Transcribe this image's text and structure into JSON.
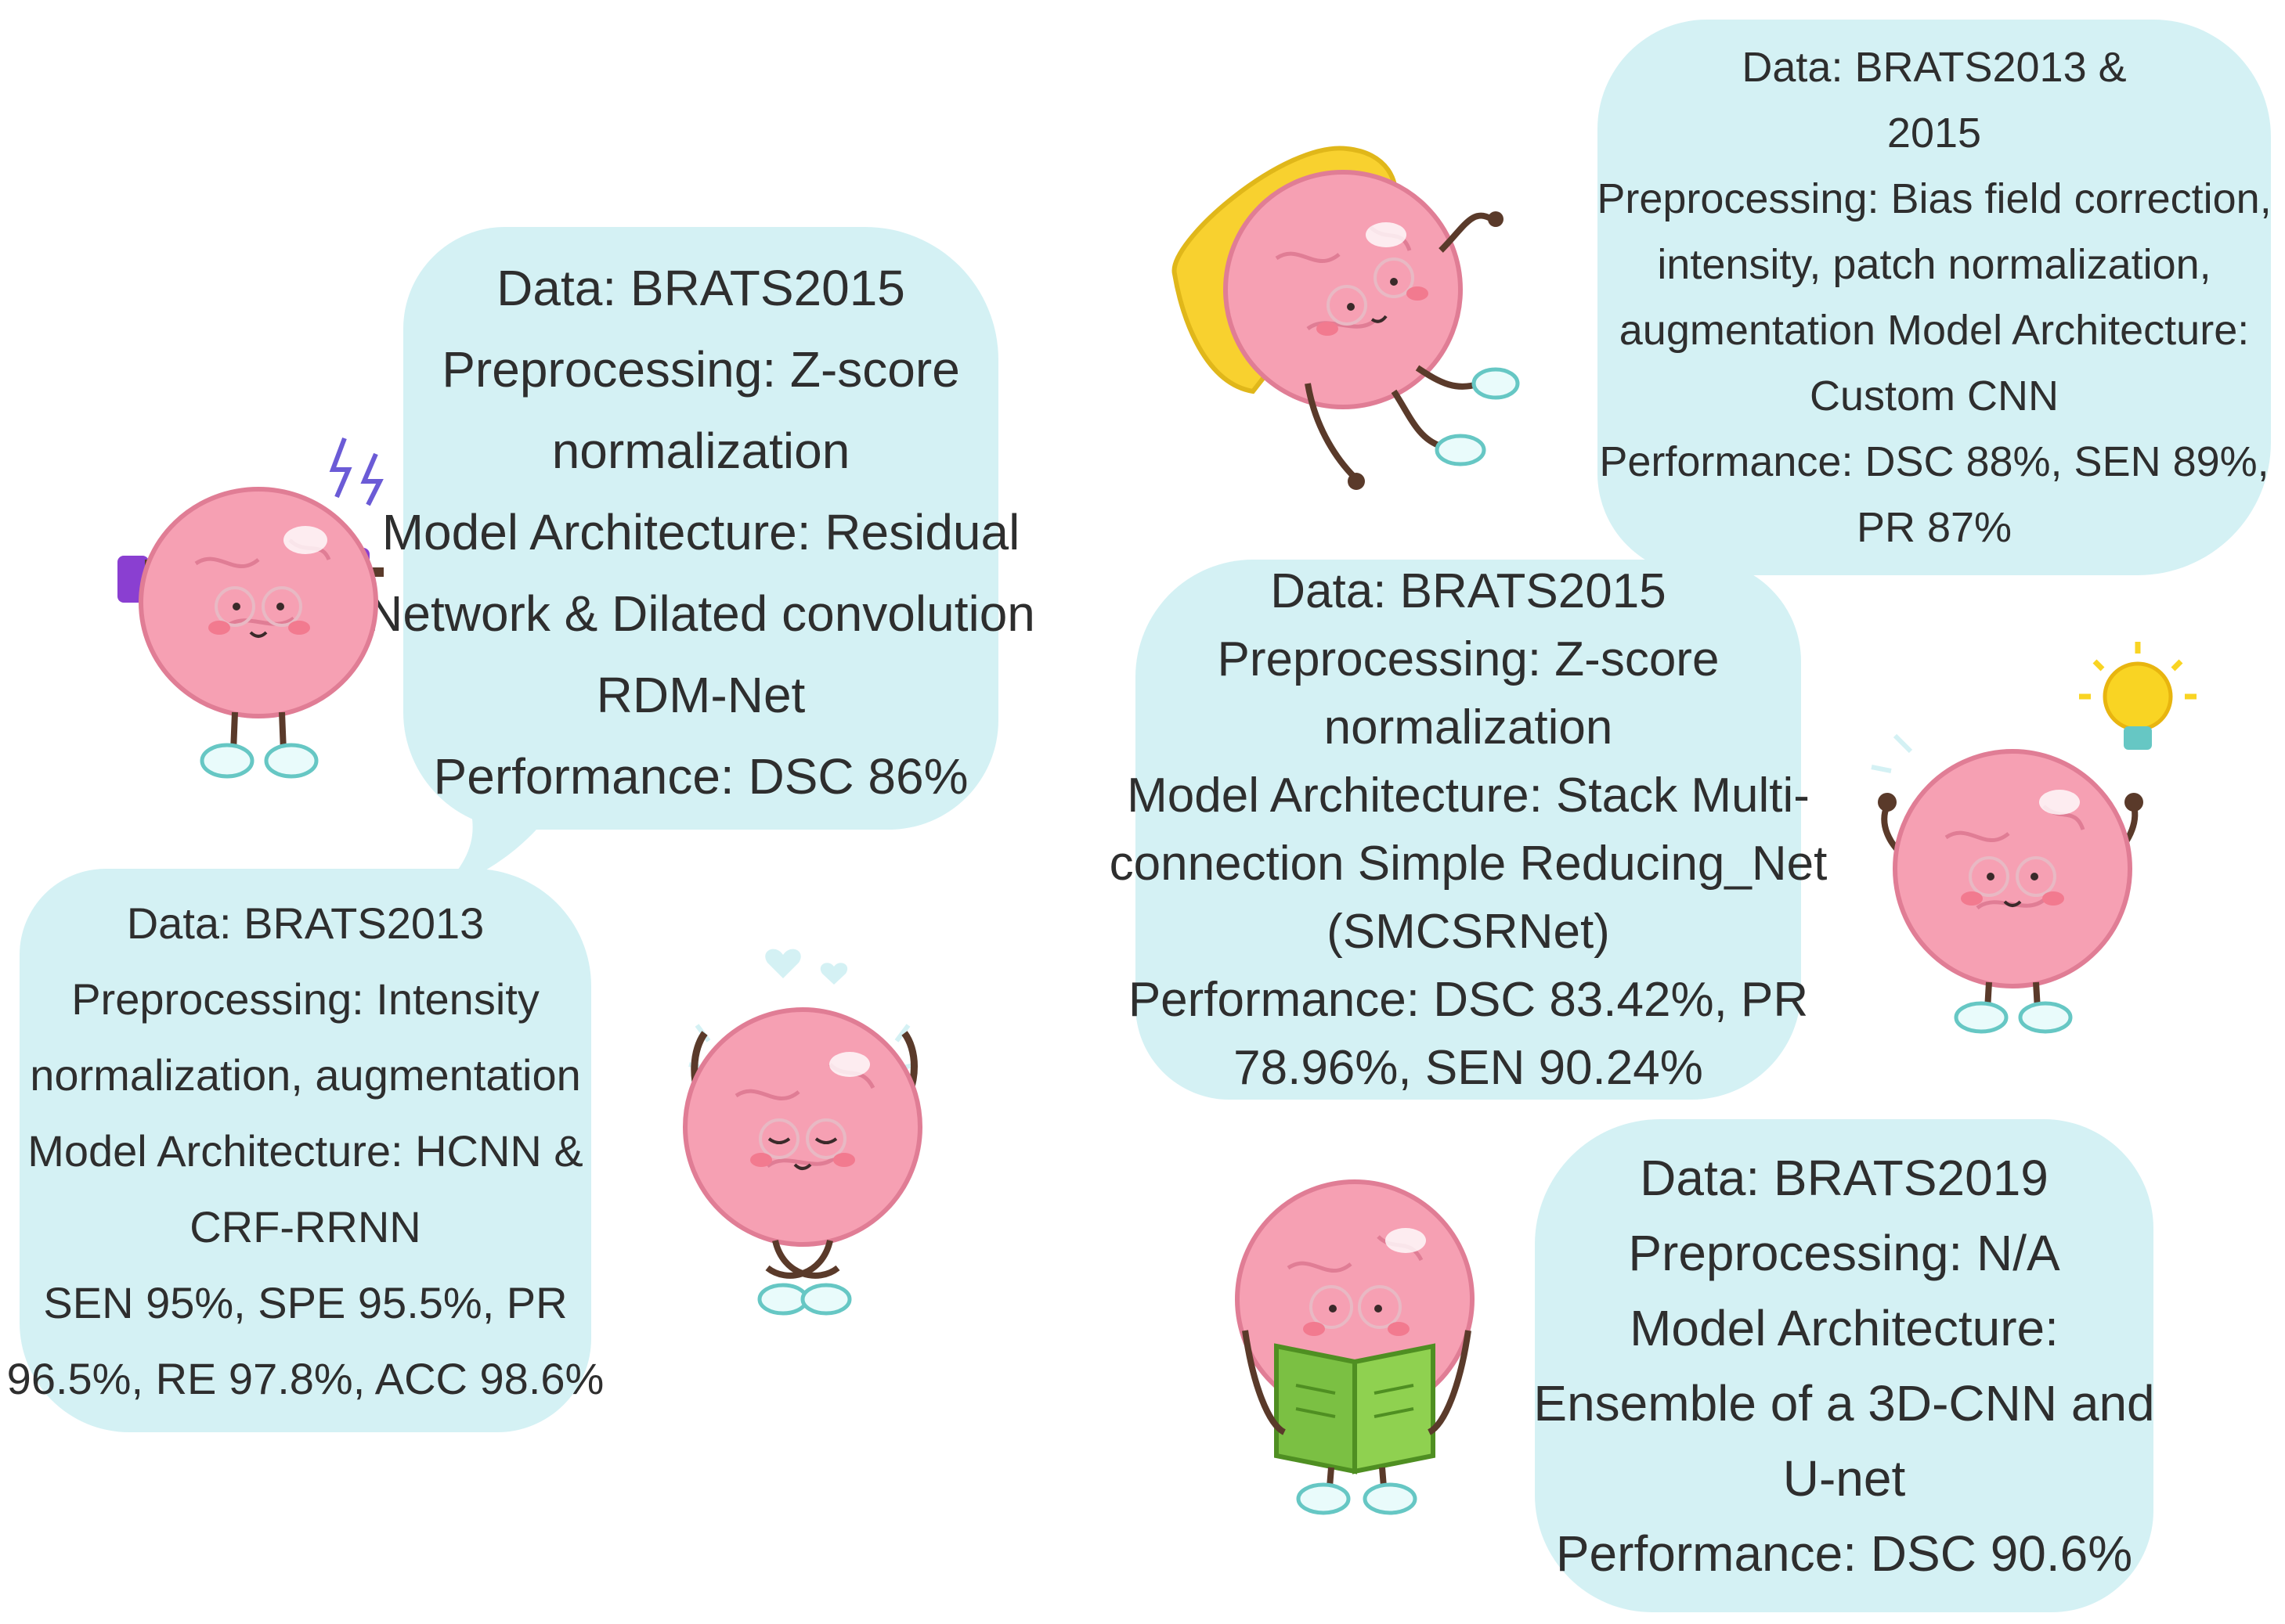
{
  "cards": {
    "card1": {
      "lines": [
        "Data: BRATS2015",
        "Preprocessing: Z-score",
        "normalization",
        "Model Architecture: Residual",
        "Network & Dilated convolution",
        "RDM-Net",
        "Performance: DSC 86%"
      ]
    },
    "card2": {
      "lines": [
        "Data: BRATS2013",
        "Preprocessing: Intensity",
        "normalization, augmentation",
        "Model Architecture: HCNN &",
        "CRF-RRNN",
        "SEN 95%, SPE 95.5%, PR",
        "96.5%, RE 97.8%, ACC 98.6%"
      ]
    },
    "card3": {
      "lines": [
        "Data: BRATS2013 &",
        "2015",
        "Preprocessing: Bias field correction,",
        "intensity, patch normalization,",
        "augmentation Model Architecture:",
        "Custom CNN",
        "Performance: DSC 88%, SEN 89%,",
        "PR 87%"
      ]
    },
    "card4": {
      "lines": [
        "Data: BRATS2015",
        "Preprocessing: Z-score",
        "normalization",
        "Model Architecture: Stack Multi-",
        "connection Simple Reducing_Net",
        "(SMCSRNet)",
        "Performance: DSC 83.42%, PR",
        "78.96%, SEN 90.24%"
      ]
    },
    "card5": {
      "lines": [
        "Data: BRATS2019",
        "Preprocessing: N/A",
        "Model Architecture:",
        "Ensemble of a 3D-CNN and",
        "U-net",
        "Performance: DSC 90.6%"
      ]
    }
  },
  "colors": {
    "bubble": "#d4f1f4",
    "text": "#2e2e2e",
    "brain": "#f6a0b3",
    "brain_outline": "#e07d95",
    "dumbbell": "#8a3fd1",
    "pillow": "#f8d12f",
    "book": "#7bc043",
    "bulb": "#f9d423",
    "shoe": "#e9fbfb",
    "shoe_outline": "#66c7c4"
  },
  "icons": {
    "brain_dumbbells": "brain-lifting-dumbbells-icon",
    "brain_meditating": "brain-meditating-icon",
    "brain_pillow": "brain-resting-on-pillow-icon",
    "brain_bulb": "brain-with-lightbulb-icon",
    "brain_book": "brain-reading-book-icon"
  }
}
